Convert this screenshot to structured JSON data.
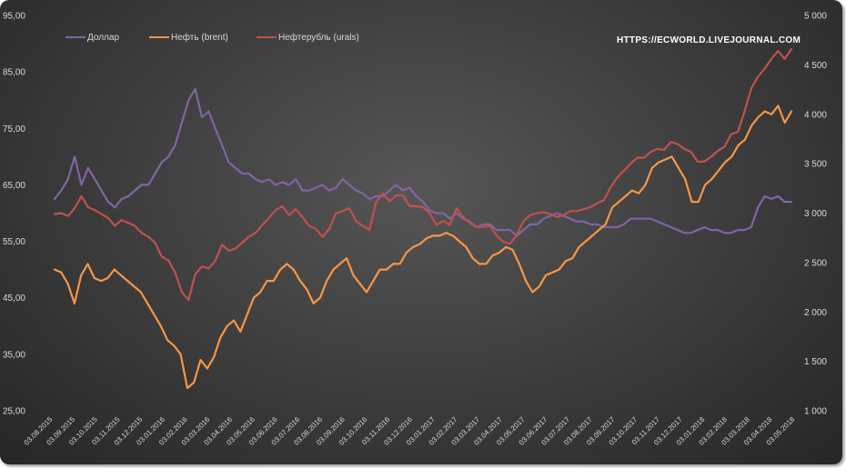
{
  "chart_data": {
    "type": "line",
    "title": "",
    "watermark": "HTTPS://ECWORLD.LIVEJOURNAL.COM",
    "y_left": {
      "ticks": [
        25,
        35,
        45,
        55,
        65,
        75,
        85,
        95
      ],
      "tick_labels": [
        "25,00",
        "35,00",
        "45,00",
        "55,00",
        "65,00",
        "75,00",
        "85,00",
        "95,00"
      ],
      "ylim": [
        25,
        95
      ]
    },
    "y_right": {
      "ticks": [
        1000,
        1500,
        2000,
        2500,
        3000,
        3500,
        4000,
        4500,
        5000
      ],
      "tick_labels": [
        "1 000",
        "1 500",
        "2 000",
        "2 500",
        "3 000",
        "3 500",
        "4 000",
        "4 500",
        "5 000"
      ],
      "ylim": [
        1000,
        5000
      ]
    },
    "x_labels": [
      "03.08.2015",
      "03.09.2015",
      "03.10.2015",
      "03.11.2015",
      "03.12.2015",
      "03.01.2016",
      "03.02.2016",
      "03.03.2016",
      "03.04.2016",
      "03.05.2016",
      "03.06.2016",
      "03.07.2016",
      "03.08.2016",
      "03.09.2016",
      "03.10.2016",
      "03.11.2016",
      "03.12.2016",
      "03.01.2017",
      "03.02.2017",
      "03.03.2017",
      "03.04.2017",
      "03.05.2017",
      "03.06.2017",
      "03.07.2017",
      "03.08.2017",
      "03.09.2017",
      "03.10.2017",
      "03.11.2017",
      "03.12.2017",
      "03.01.2018",
      "03.02.2018",
      "03.03.2018",
      "03.04.2018",
      "03.05.2018"
    ],
    "legend_position": "top-left",
    "grid": false,
    "series": [
      {
        "name": "Доллар",
        "axis": "left",
        "color": "#8064a2",
        "values": [
          62.5,
          64,
          66,
          70,
          65,
          68,
          66,
          64,
          62,
          61,
          62.5,
          63,
          64,
          65,
          65,
          67,
          69,
          70,
          72,
          76,
          80,
          82,
          77,
          78,
          75,
          72,
          69,
          68,
          67,
          67,
          66,
          65.5,
          66,
          65,
          65.5,
          65,
          66,
          64,
          64,
          64.5,
          65,
          64,
          64.5,
          66,
          65,
          64,
          63.5,
          62.5,
          63,
          63,
          64,
          65,
          64,
          64.5,
          63,
          62,
          60.5,
          60,
          60,
          59,
          60,
          59,
          58.5,
          57.5,
          58,
          58,
          57,
          57,
          57,
          56,
          57,
          58,
          58,
          59,
          59.5,
          60,
          59.5,
          59,
          58.5,
          58.5,
          58,
          58,
          57.5,
          57.5,
          57.5,
          58,
          59,
          59,
          59,
          59,
          58.5,
          58,
          57.5,
          57,
          56.5,
          56.5,
          57,
          57.5,
          57,
          57,
          56.5,
          56.5,
          57,
          57,
          57.5,
          61,
          63,
          62.5,
          63,
          62,
          62
        ]
      },
      {
        "name": "Нефть (brent)",
        "axis": "left",
        "color": "#f79646",
        "values": [
          50,
          49.5,
          47.5,
          44,
          49,
          51,
          48.5,
          48,
          48.5,
          50,
          49,
          48,
          47,
          46,
          44,
          42,
          40,
          37.5,
          36.5,
          35,
          29,
          30,
          34,
          32.5,
          34.5,
          38,
          40,
          41,
          39,
          42,
          45,
          46,
          48,
          48,
          50,
          51,
          50,
          48,
          46.5,
          44,
          45,
          48,
          50,
          51,
          52,
          49,
          47.5,
          46,
          48,
          50,
          50,
          51,
          51,
          53,
          54,
          54.5,
          55.5,
          56,
          56,
          56.5,
          56,
          55,
          54,
          52,
          51,
          51,
          52.5,
          53,
          54,
          53.5,
          51,
          48,
          46,
          47,
          49,
          49.5,
          50,
          51.5,
          52,
          54,
          55,
          56,
          57,
          58,
          61,
          62,
          63,
          64,
          63.5,
          65,
          68,
          69,
          69.5,
          70,
          68,
          66,
          62,
          62,
          65,
          66,
          67.5,
          69,
          70,
          72,
          73,
          75.5,
          77,
          78,
          77.5,
          79,
          76,
          78
        ]
      },
      {
        "name": "Нефтерубль (urals)",
        "axis": "right",
        "color": "#c0504d",
        "values": [
          2990,
          3000,
          2970,
          3050,
          3170,
          3060,
          3030,
          2990,
          2950,
          2870,
          2930,
          2900,
          2870,
          2800,
          2760,
          2700,
          2560,
          2520,
          2400,
          2200,
          2120,
          2380,
          2460,
          2440,
          2520,
          2680,
          2620,
          2640,
          2700,
          2760,
          2800,
          2880,
          2950,
          3030,
          3070,
          2980,
          3040,
          2960,
          2870,
          2840,
          2760,
          2840,
          3000,
          3020,
          3050,
          2920,
          2870,
          2830,
          3110,
          3200,
          3120,
          3180,
          3180,
          3070,
          3070,
          3060,
          3000,
          2880,
          2920,
          2880,
          3050,
          2960,
          2900,
          2860,
          2860,
          2870,
          2770,
          2710,
          2690,
          2780,
          2920,
          2980,
          3000,
          3010,
          2990,
          2960,
          2980,
          3020,
          3020,
          3040,
          3060,
          3100,
          3130,
          3260,
          3360,
          3430,
          3500,
          3560,
          3560,
          3620,
          3650,
          3640,
          3720,
          3700,
          3650,
          3620,
          3520,
          3520,
          3570,
          3630,
          3670,
          3800,
          3820,
          4030,
          4260,
          4380,
          4460,
          4560,
          4640,
          4560,
          4660
        ]
      }
    ]
  }
}
